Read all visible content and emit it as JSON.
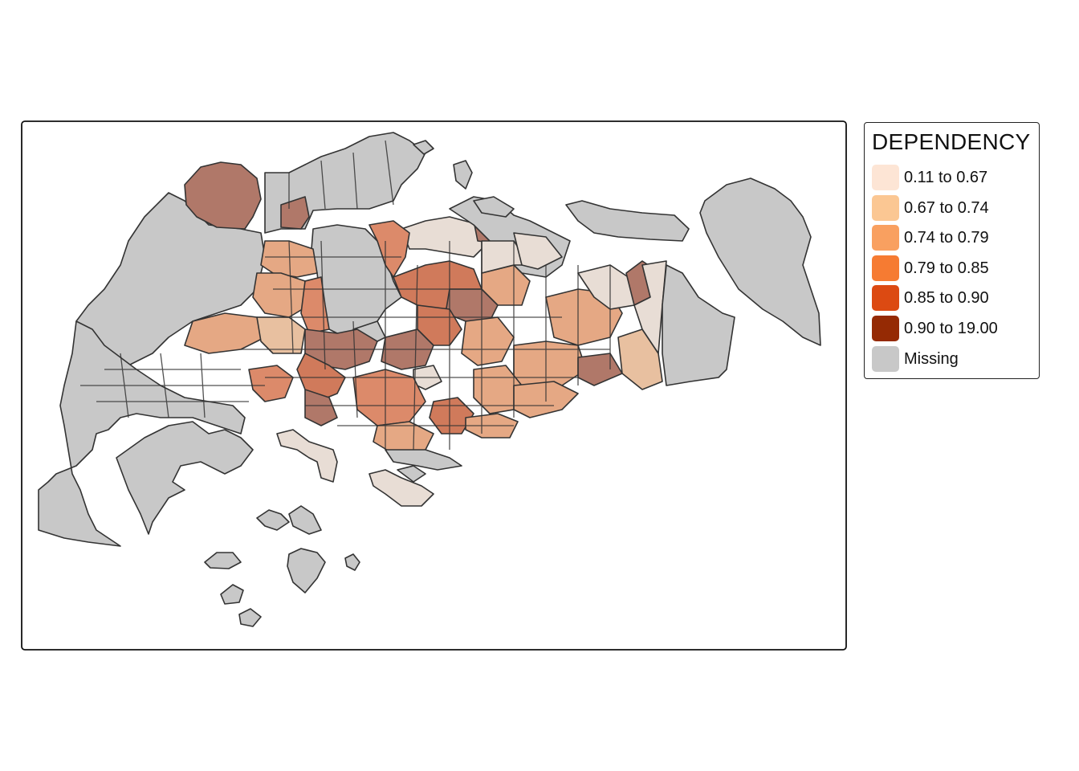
{
  "legend": {
    "title": "DEPENDENCY",
    "items": [
      {
        "label": "0.11 to 0.67",
        "color": "#fde5d5"
      },
      {
        "label": "0.67 to 0.74",
        "color": "#fbc793"
      },
      {
        "label": "0.74 to 0.79",
        "color": "#f9a060"
      },
      {
        "label": "0.79 to 0.85",
        "color": "#f67b32"
      },
      {
        "label": "0.85 to 0.90",
        "color": "#dc4a12"
      },
      {
        "label": "0.90 to 19.00",
        "color": "#952a04"
      },
      {
        "label": "Missing",
        "color": "#c8c8c8"
      }
    ]
  },
  "map": {
    "fill_alpha": 0.5,
    "border_color": "#333333",
    "frame_color": "#111111"
  }
}
